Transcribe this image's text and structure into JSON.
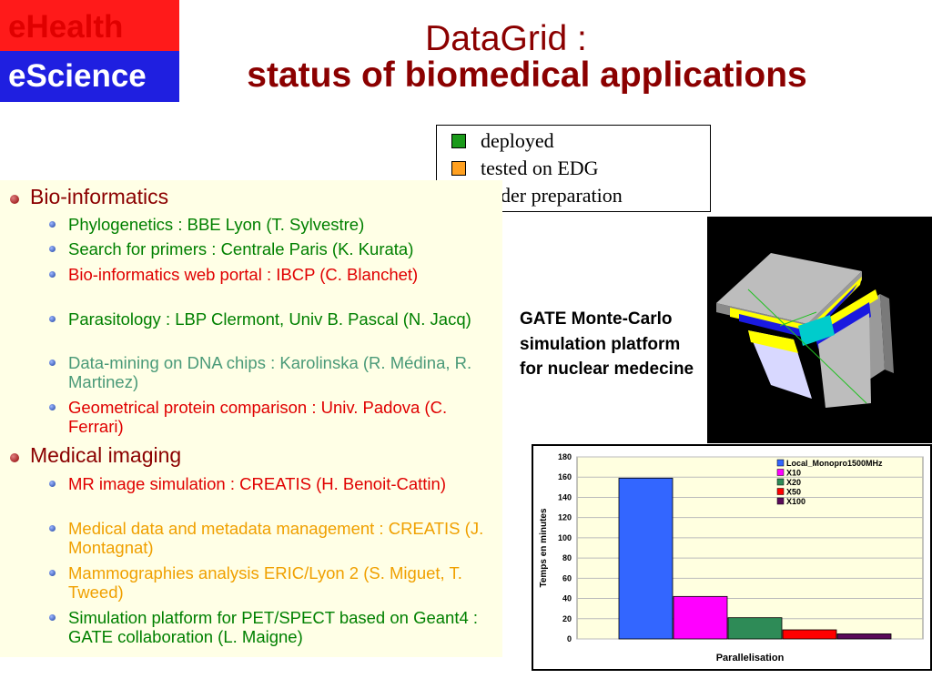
{
  "badges": {
    "top": "eHealth",
    "bottom": "eScience"
  },
  "title": {
    "line1": "DataGrid :",
    "line2": "status of biomedical applications"
  },
  "legend": [
    {
      "label": "deployed",
      "color": "#1a9a1a"
    },
    {
      "label": "tested on EDG",
      "color": "#ffa020"
    },
    {
      "label": "under preparation",
      "color": "#ff0000"
    }
  ],
  "sections": {
    "bio": {
      "heading": "Bio-informatics",
      "items": [
        {
          "text": "Phylogenetics : BBE Lyon (T. Sylvestre)",
          "status": "green"
        },
        {
          "text": "Search for primers : Centrale Paris (K. Kurata)",
          "status": "green"
        },
        {
          "text": "Bio-informatics web portal : IBCP (C. Blanchet)",
          "status": "red"
        },
        {
          "text": "Parasitology : LBP Clermont, Univ B. Pascal (N. Jacq)",
          "status": "green"
        },
        {
          "text": "Data-mining on DNA chips : Karolinska (R. Médina, R. Martinez)",
          "status": "gray"
        },
        {
          "text": "Geometrical protein comparison : Univ. Padova  (C. Ferrari)",
          "status": "red"
        }
      ]
    },
    "imaging": {
      "heading": "Medical imaging",
      "items": [
        {
          "text": "MR image simulation : CREATIS (H. Benoit-Cattin)",
          "status": "red"
        },
        {
          "text": "Medical data and metadata management : CREATIS (J. Montagnat)",
          "status": "orange"
        },
        {
          "text": "Mammographies analysis ERIC/Lyon 2 (S. Miguet, T. Tweed)",
          "status": "orange"
        },
        {
          "text": "Simulation platform for PET/SPECT based on Geant4 : GATE collaboration (L. Maigne)",
          "status": "green"
        }
      ]
    }
  },
  "gate_caption": " GATE Monte-Carlo simulation platform for nuclear medecine",
  "chart_data": {
    "type": "bar",
    "categories": [
      ""
    ],
    "series": [
      {
        "name": "Local_Monopro1500MHz",
        "values": [
          159
        ],
        "color": "#3366ff"
      },
      {
        "name": "X10",
        "values": [
          42
        ],
        "color": "#ff00ff"
      },
      {
        "name": "X20",
        "values": [
          21
        ],
        "color": "#2e8b57"
      },
      {
        "name": "X50",
        "values": [
          9
        ],
        "color": "#ff0000"
      },
      {
        "name": "X100",
        "values": [
          5
        ],
        "color": "#5a0a5a"
      }
    ],
    "yticks": [
      0,
      20,
      40,
      60,
      80,
      100,
      120,
      140,
      160,
      180
    ],
    "ylim": [
      0,
      180
    ],
    "xlabel": "Parallelisation",
    "ylabel": "Temps en minutes",
    "plot_background": "#ffffe0",
    "legend_position": "top-right"
  }
}
